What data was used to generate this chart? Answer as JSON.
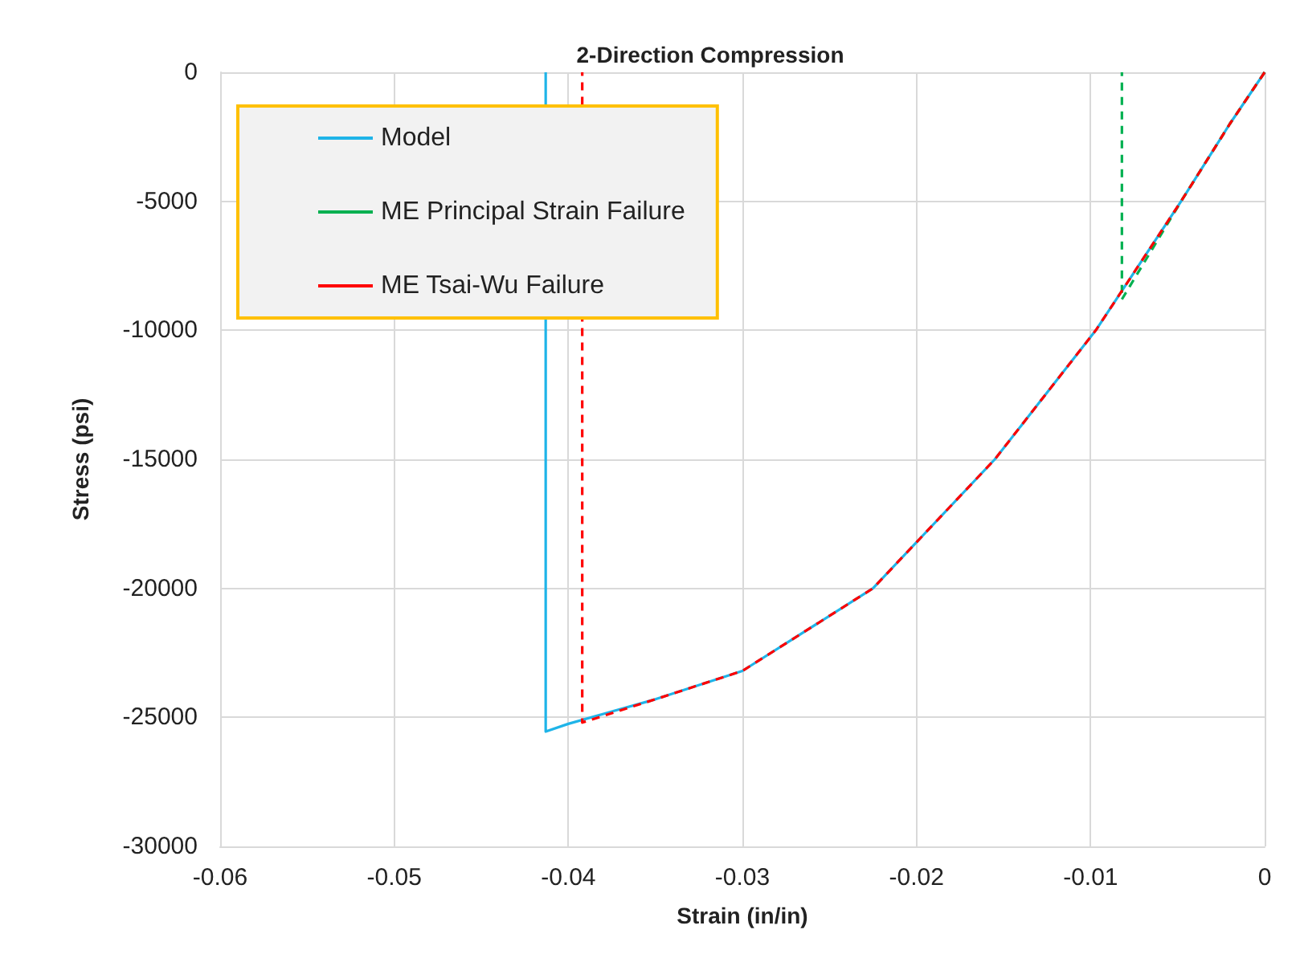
{
  "chart_data": {
    "type": "line",
    "title": "2-Direction Compression",
    "xlabel": "Strain (in/in)",
    "ylabel": "Stress (psi)",
    "xlim": [
      -0.06,
      0
    ],
    "xticks": [
      -0.06,
      -0.05,
      -0.04,
      -0.03,
      -0.02,
      -0.01,
      0
    ],
    "ylim": [
      -30000,
      0
    ],
    "yticks": [
      -30000,
      -25000,
      -20000,
      -15000,
      -10000,
      -5000,
      0
    ],
    "grid": true,
    "legend": "top left",
    "marker": "none",
    "series": [
      {
        "name": "Model",
        "color": "#1fb4e8",
        "line_style": "solid",
        "x": [
          0,
          -0.002,
          -0.0048,
          -0.0097,
          -0.0155,
          -0.0225,
          -0.03,
          -0.035,
          -0.04,
          -0.0413,
          -0.0413
        ],
        "values": [
          0,
          -2000,
          -5000,
          -10000,
          -15000,
          -20000,
          -23200,
          -24300,
          -25250,
          -25550,
          0
        ]
      },
      {
        "name": "ME Principal Strain Failure",
        "color": "#00b050",
        "line_style": "dashed",
        "x": [
          0,
          -0.002,
          -0.0048,
          -0.0082,
          -0.0082
        ],
        "values": [
          0,
          -2000,
          -5000,
          -8800,
          0
        ]
      },
      {
        "name": "ME Tsai-Wu Failure",
        "color": "#ff0000",
        "line_style": "dashed",
        "x": [
          0,
          -0.002,
          -0.0048,
          -0.0097,
          -0.0155,
          -0.0225,
          -0.03,
          -0.035,
          -0.0392,
          -0.0392
        ],
        "values": [
          0,
          -2000,
          -5000,
          -10000,
          -15000,
          -20000,
          -23200,
          -24300,
          -25200,
          0
        ]
      }
    ]
  }
}
